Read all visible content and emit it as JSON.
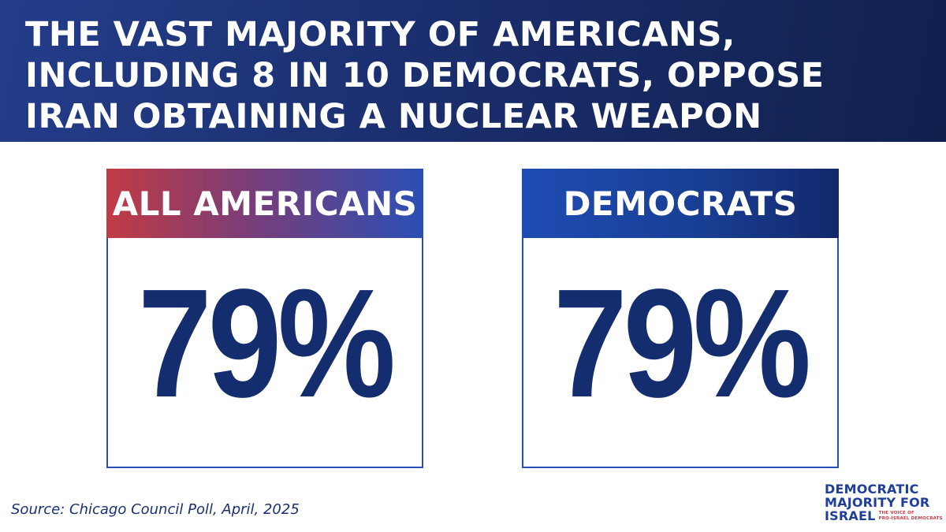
{
  "header": {
    "title": "THE VAST MAJORITY OF AMERICANS, INCLUDING 8 IN 10 DEMOCRATS, OPPOSE IRAN OBTAINING A NUCLEAR WEAPON"
  },
  "cards": [
    {
      "label": "ALL AMERICANS",
      "value": "79%"
    },
    {
      "label": "DEMOCRATS",
      "value": "79%"
    }
  ],
  "footer": {
    "source": "Source: Chicago Council Poll, April, 2025"
  },
  "logo": {
    "line1": "DEMOCRATIC",
    "line2": "MAJORITY FOR",
    "line3": "ISRAEL",
    "tagline1": "THE VOICE OF",
    "tagline2": "PRO-ISRAEL DEMOCRATS"
  },
  "colors": {
    "navy": "#142d6e",
    "blue": "#2650b8",
    "red": "#c23b45"
  }
}
